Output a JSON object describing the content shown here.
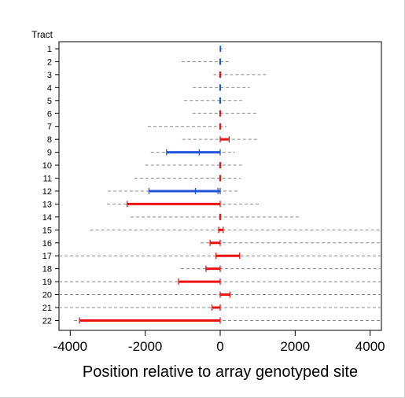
{
  "chart_data": {
    "type": "interval",
    "title": "",
    "xlabel": "Position relative to array genotyped site",
    "ylabel": "Tract",
    "xlim": [
      -4300,
      4300
    ],
    "xticks": [
      -4000,
      -2000,
      0,
      2000,
      4000
    ],
    "xtick_labels": [
      "-4000",
      "-2000",
      "0",
      "2000",
      "4000"
    ],
    "grid": false,
    "legend": "none",
    "colors": {
      "blue": "#2255dd",
      "red": "#ee1111",
      "dashed": "#888888"
    },
    "tracts": [
      {
        "label": "1",
        "color": "blue",
        "dashed": [
          -20,
          140
        ],
        "segment": [
          0,
          10
        ],
        "inner": []
      },
      {
        "label": "2",
        "color": "blue",
        "dashed": [
          -1030,
          280
        ],
        "segment": [
          -10,
          10
        ],
        "inner": []
      },
      {
        "label": "3",
        "color": "red",
        "dashed": [
          -180,
          1220
        ],
        "segment": [
          -10,
          10
        ],
        "inner": []
      },
      {
        "label": "4",
        "color": "blue",
        "dashed": [
          -730,
          790
        ],
        "segment": [
          -10,
          10
        ],
        "inner": []
      },
      {
        "label": "5",
        "color": "blue",
        "dashed": [
          -960,
          580
        ],
        "segment": [
          -10,
          10
        ],
        "inner": []
      },
      {
        "label": "6",
        "color": "red",
        "dashed": [
          -740,
          1020
        ],
        "segment": [
          -10,
          10
        ],
        "inner": []
      },
      {
        "label": "7",
        "color": "red",
        "dashed": [
          -1930,
          170
        ],
        "segment": [
          -10,
          10
        ],
        "inner": []
      },
      {
        "label": "8",
        "color": "red",
        "dashed": [
          -1010,
          1020
        ],
        "segment": [
          0,
          240
        ],
        "inner": []
      },
      {
        "label": "9",
        "color": "blue",
        "dashed": [
          -1850,
          390
        ],
        "segment": [
          -1430,
          0
        ],
        "inner": [
          -560
        ]
      },
      {
        "label": "10",
        "color": "red",
        "dashed": [
          -2000,
          600
        ],
        "segment": [
          -10,
          10
        ],
        "inner": []
      },
      {
        "label": "11",
        "color": "red",
        "dashed": [
          -2290,
          540
        ],
        "segment": [
          -10,
          10
        ],
        "inner": []
      },
      {
        "label": "12",
        "color": "blue",
        "dashed": [
          -3000,
          510
        ],
        "segment": [
          -1900,
          0
        ],
        "inner": [
          -660,
          -60
        ]
      },
      {
        "label": "13",
        "color": "red",
        "dashed": [
          -3020,
          1040
        ],
        "segment": [
          -2480,
          0
        ],
        "inner": []
      },
      {
        "label": "14",
        "color": "red",
        "dashed": [
          -2390,
          2130
        ],
        "segment": [
          -10,
          10
        ],
        "inner": []
      },
      {
        "label": "15",
        "color": "red",
        "dashed": [
          -3470,
          4300
        ],
        "segment": [
          -40,
          80
        ],
        "inner": []
      },
      {
        "label": "16",
        "color": "red",
        "dashed": [
          -520,
          4300
        ],
        "segment": [
          -270,
          0
        ],
        "inner": []
      },
      {
        "label": "17",
        "color": "red",
        "dashed": [
          -4300,
          4300
        ],
        "segment": [
          -110,
          520
        ],
        "inner": []
      },
      {
        "label": "18",
        "color": "red",
        "dashed": [
          -1050,
          4300
        ],
        "segment": [
          -380,
          0
        ],
        "inner": []
      },
      {
        "label": "19",
        "color": "red",
        "dashed": [
          -4300,
          4300
        ],
        "segment": [
          -1110,
          0
        ],
        "inner": []
      },
      {
        "label": "20",
        "color": "red",
        "dashed": [
          -4300,
          4300
        ],
        "segment": [
          0,
          260
        ],
        "inner": []
      },
      {
        "label": "21",
        "color": "red",
        "dashed": [
          -4300,
          4300
        ],
        "segment": [
          -220,
          0
        ],
        "inner": []
      },
      {
        "label": "22",
        "color": "red",
        "dashed": [
          -3900,
          4300
        ],
        "segment": [
          -3750,
          0
        ],
        "inner": []
      }
    ]
  }
}
